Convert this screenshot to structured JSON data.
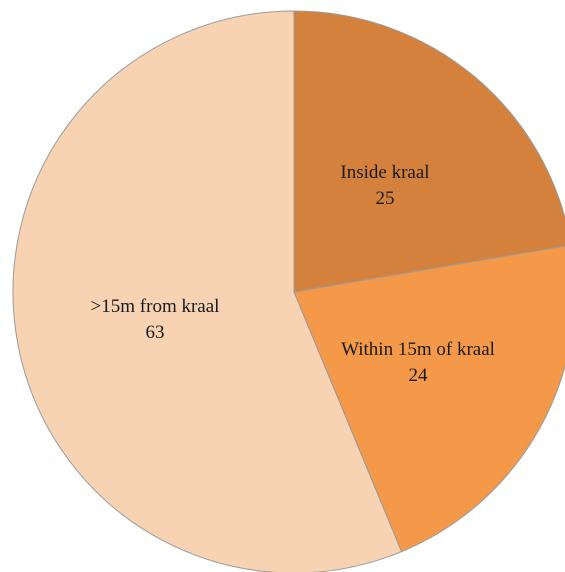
{
  "chart_data": {
    "type": "pie",
    "title": "",
    "slices": [
      {
        "label": "Inside kraal",
        "value": 25,
        "color": "#d4813e"
      },
      {
        "label": "Within 15m of kraal",
        "value": 24,
        "color": "#f4984a"
      },
      {
        "label": ">15m from kraal",
        "value": 63,
        "color": "#f8d3b3"
      }
    ],
    "start_angle": "12 o'clock",
    "direction": "clockwise",
    "legend": "none",
    "data_labels": "category name and value inside slices"
  }
}
